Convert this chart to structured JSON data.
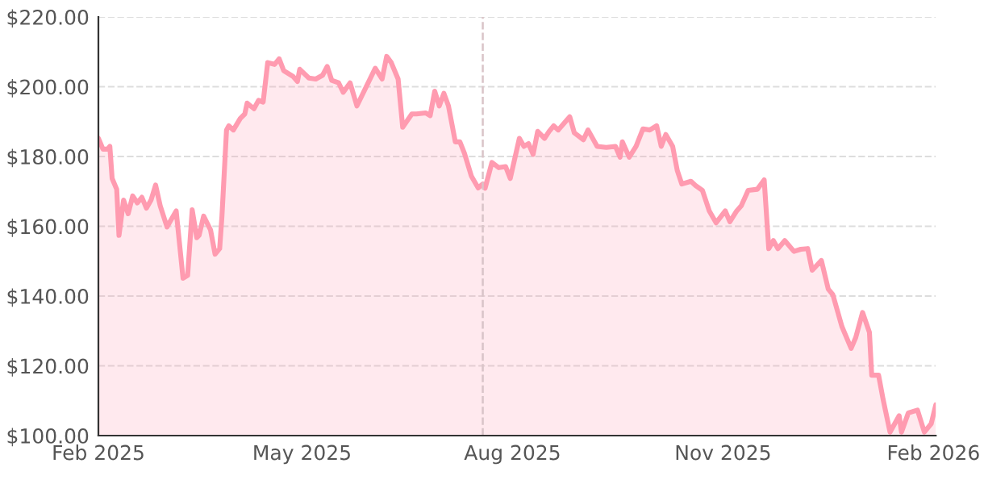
{
  "chart_data": {
    "type": "area",
    "x": [
      "2025-02-01",
      "2025-02-03",
      "2025-02-05",
      "2025-02-06",
      "2025-02-07",
      "2025-02-09",
      "2025-02-10",
      "2025-02-12",
      "2025-02-14",
      "2025-02-16",
      "2025-02-18",
      "2025-02-20",
      "2025-02-22",
      "2025-02-24",
      "2025-02-26",
      "2025-02-28",
      "2025-03-03",
      "2025-03-04",
      "2025-03-07",
      "2025-03-10",
      "2025-03-12",
      "2025-03-14",
      "2025-03-16",
      "2025-03-17",
      "2025-03-19",
      "2025-03-22",
      "2025-03-24",
      "2025-03-26",
      "2025-03-27",
      "2025-03-29",
      "2025-03-30",
      "2025-04-01",
      "2025-04-04",
      "2025-04-06",
      "2025-04-07",
      "2025-04-10",
      "2025-04-12",
      "2025-04-14",
      "2025-04-16",
      "2025-04-19",
      "2025-04-21",
      "2025-04-23",
      "2025-04-27",
      "2025-04-29",
      "2025-04-30",
      "2025-05-04",
      "2025-05-07",
      "2025-05-10",
      "2025-05-12",
      "2025-05-14",
      "2025-05-17",
      "2025-05-19",
      "2025-05-22",
      "2025-05-25",
      "2025-05-29",
      "2025-06-02",
      "2025-06-05",
      "2025-06-07",
      "2025-06-09",
      "2025-06-12",
      "2025-06-14",
      "2025-06-18",
      "2025-06-20",
      "2025-06-24",
      "2025-06-26",
      "2025-06-28",
      "2025-06-30",
      "2025-07-02",
      "2025-07-04",
      "2025-07-07",
      "2025-07-09",
      "2025-07-11",
      "2025-07-14",
      "2025-07-17",
      "2025-07-19",
      "2025-07-20",
      "2025-07-23",
      "2025-07-26",
      "2025-07-29",
      "2025-07-31",
      "2025-08-04",
      "2025-08-06",
      "2025-08-08",
      "2025-08-10",
      "2025-08-12",
      "2025-08-15",
      "2025-08-17",
      "2025-08-19",
      "2025-08-21",
      "2025-08-24",
      "2025-08-26",
      "2025-08-28",
      "2025-09-01",
      "2025-09-03",
      "2025-09-07",
      "2025-09-11",
      "2025-09-15",
      "2025-09-17",
      "2025-09-18",
      "2025-09-21",
      "2025-09-24",
      "2025-09-27",
      "2025-09-30",
      "2025-10-03",
      "2025-10-05",
      "2025-10-07",
      "2025-10-10",
      "2025-10-12",
      "2025-10-14",
      "2025-10-18",
      "2025-10-20",
      "2025-10-23",
      "2025-10-26",
      "2025-10-29",
      "2025-11-02",
      "2025-11-04",
      "2025-11-07",
      "2025-11-09",
      "2025-11-12",
      "2025-11-16",
      "2025-11-19",
      "2025-11-21",
      "2025-11-23",
      "2025-11-25",
      "2025-11-28",
      "2025-12-02",
      "2025-12-05",
      "2025-12-08",
      "2025-12-10",
      "2025-12-14",
      "2025-12-17",
      "2025-12-19",
      "2025-12-23",
      "2025-12-27",
      "2025-12-29",
      "2026-01-01",
      "2026-01-04",
      "2026-01-05",
      "2026-01-08",
      "2026-01-10",
      "2026-01-13",
      "2026-01-17",
      "2026-01-18",
      "2026-01-21",
      "2026-01-25",
      "2026-01-28",
      "2026-01-31",
      "2026-02-02"
    ],
    "series": [
      {
        "color": "#ff9bb0",
        "values": [
          185.2,
          182.1,
          182.1,
          182.9,
          173.7,
          170.6,
          157.4,
          167.5,
          163.6,
          168.7,
          166.7,
          168.3,
          165.2,
          167.5,
          171.8,
          165.9,
          159.8,
          161,
          164.4,
          145.1,
          145.9,
          164.7,
          156.7,
          157.4,
          162.9,
          159,
          152,
          153.6,
          162.9,
          187.6,
          188.8,
          187.6,
          190.9,
          192.2,
          195.3,
          193.7,
          196.1,
          195.6,
          206.9,
          206.4,
          208,
          204.6,
          203,
          201.5,
          205,
          202.5,
          202.2,
          203.3,
          205.8,
          201.8,
          201.1,
          198.4,
          201.1,
          194.5,
          199.9,
          205.3,
          202.2,
          208.7,
          206.9,
          202.2,
          188.4,
          192.2,
          192.2,
          192.5,
          191.7,
          198.7,
          194.5,
          198.1,
          194.5,
          184.2,
          184.2,
          180.9,
          174.4,
          171,
          172.1,
          170.9,
          178.3,
          176.8,
          177.1,
          173.7,
          185.2,
          182.9,
          183.7,
          180.6,
          187.2,
          185.2,
          187.2,
          188.8,
          187.6,
          189.9,
          191.4,
          186.8,
          184.8,
          187.6,
          182.9,
          182.6,
          182.9,
          179.8,
          184.2,
          179.8,
          182.9,
          187.9,
          187.6,
          188.8,
          182.9,
          186.3,
          182.9,
          176,
          172.1,
          172.9,
          171.7,
          170.3,
          164.4,
          161,
          164.4,
          161.3,
          164.4,
          165.9,
          170.3,
          170.6,
          173.3,
          153.6,
          155.9,
          153.6,
          155.9,
          152.8,
          153.4,
          153.6,
          147.4,
          150.2,
          142,
          140.4,
          131.2,
          125,
          128.1,
          135.3,
          129.6,
          117.3,
          117.3,
          110.3,
          101,
          105.7,
          101,
          106.5,
          107.3,
          101,
          103.4,
          108.8
        ]
      }
    ],
    "xlim": [
      "2025-02-01",
      "2026-02-02"
    ],
    "xticks": [
      {
        "value": "2025-02-01",
        "label": "Feb 2025"
      },
      {
        "value": "2025-05-01",
        "label": "May 2025"
      },
      {
        "value": "2025-08-01",
        "label": "Aug 2025"
      },
      {
        "value": "2025-11-01",
        "label": "Nov 2025"
      },
      {
        "value": "2026-02-01",
        "label": "Feb 2026"
      }
    ],
    "ylim": [
      100,
      220
    ],
    "yticks": [
      {
        "value": 100,
        "label": "$100.00"
      },
      {
        "value": 120,
        "label": "$120.00"
      },
      {
        "value": 140,
        "label": "$140.00"
      },
      {
        "value": 160,
        "label": "$160.00"
      },
      {
        "value": 180,
        "label": "$180.00"
      },
      {
        "value": 200,
        "label": "$200.00"
      },
      {
        "value": 220,
        "label": "$220.00"
      }
    ],
    "ref_lines": [
      {
        "axis": "x",
        "value": "2025-07-19",
        "color": "#d9c4c8",
        "line_style": "dashed"
      }
    ],
    "grid": "y",
    "legend": false,
    "marker": "none",
    "line_style": "solid"
  }
}
